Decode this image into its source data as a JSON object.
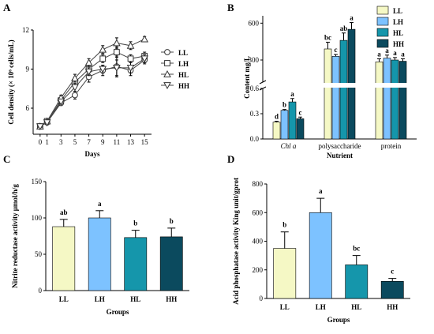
{
  "colors": {
    "LL": "#f5f8c5",
    "LH": "#7dc2ff",
    "HL": "#1596ab",
    "HH": "#0b4a5e",
    "line": "#444444"
  },
  "panels": [
    {
      "letter": "A",
      "chart_data": {
        "type": "line",
        "xlabel": "Days",
        "ylabel": "Cell density (× 10⁶ cells/mL)",
        "x": [
          0,
          1,
          3,
          5,
          7,
          9,
          11,
          13,
          15
        ],
        "xticks": [
          "0",
          "1",
          "3",
          "5",
          "7",
          "9",
          "11",
          "13",
          "15"
        ],
        "ylim": [
          4,
          12
        ],
        "yticks": [
          3,
          6,
          9,
          12
        ],
        "legend_position": "right",
        "series": [
          {
            "name": "LL",
            "marker": "circle",
            "values": [
              4.6,
              4.9,
              6.4,
              7.0,
              8.4,
              8.9,
              9.2,
              8.9,
              9.7
            ],
            "errors": [
              0.1,
              0.1,
              0.2,
              0.3,
              0.4,
              0.4,
              0.8,
              0.4,
              0.3
            ]
          },
          {
            "name": "LH",
            "marker": "square",
            "values": [
              4.6,
              5.0,
              6.6,
              8.0,
              9.0,
              9.8,
              10.3,
              9.8,
              10.0
            ],
            "errors": [
              0.1,
              0.1,
              0.2,
              0.3,
              0.3,
              0.3,
              0.4,
              0.3,
              0.3
            ]
          },
          {
            "name": "HL",
            "marker": "triangle-up",
            "values": [
              4.6,
              5.0,
              6.8,
              8.3,
              9.5,
              10.5,
              11.0,
              10.8,
              11.3
            ],
            "errors": [
              0.1,
              0.1,
              0.2,
              0.3,
              0.3,
              0.3,
              0.4,
              0.3,
              0.2
            ]
          },
          {
            "name": "HH",
            "marker": "triangle-down",
            "values": [
              4.6,
              4.9,
              6.5,
              7.6,
              8.8,
              9.0,
              9.1,
              9.1,
              9.8
            ],
            "errors": [
              0.1,
              0.1,
              0.2,
              0.3,
              0.3,
              0.3,
              0.6,
              0.4,
              0.3
            ]
          }
        ]
      }
    },
    {
      "letter": "B",
      "chart_data": {
        "type": "bar",
        "xlabel": "Nutrient",
        "ylabel": "Content mg/L",
        "categories": [
          "Chl a",
          "polysaccharide",
          "protein"
        ],
        "broken_axis": {
          "lower_range": [
            0,
            0.6
          ],
          "lower_ticks": [
            "0.0",
            "0.3",
            "0.6"
          ],
          "upper_range": [
            120,
            660
          ],
          "upper_ticks": [
            "300",
            "600"
          ]
        },
        "legend_position": "top-right",
        "series": [
          {
            "name": "LL",
            "values": [
              0.2,
              390,
              285
            ],
            "errors": [
              0.01,
              55,
              25
            ],
            "letters": [
              "d",
              "bc",
              "a"
            ]
          },
          {
            "name": "LH",
            "values": [
              0.34,
              330,
              315
            ],
            "errors": [
              0.01,
              15,
              25
            ],
            "letters": [
              "b",
              "c",
              "a"
            ]
          },
          {
            "name": "HL",
            "values": [
              0.44,
              460,
              300
            ],
            "errors": [
              0.04,
              60,
              20
            ],
            "letters": [
              "a",
              "ab",
              "a"
            ]
          },
          {
            "name": "HH",
            "values": [
              0.24,
              550,
              290
            ],
            "errors": [
              0.02,
              55,
              20
            ],
            "letters": [
              "c",
              "a",
              "a"
            ]
          }
        ]
      }
    },
    {
      "letter": "C",
      "chart_data": {
        "type": "bar",
        "xlabel": "Groups",
        "ylabel": "Nitrite reductase activity μmol/h/g",
        "categories": [
          "LL",
          "LH",
          "HL",
          "HH"
        ],
        "values": [
          88,
          100,
          73,
          74
        ],
        "errors": [
          10,
          10,
          10,
          12
        ],
        "letters": [
          "ab",
          "a",
          "b",
          "b"
        ],
        "ylim": [
          0,
          150
        ],
        "yticks": [
          0,
          50,
          100,
          150
        ]
      }
    },
    {
      "letter": "D",
      "chart_data": {
        "type": "bar",
        "xlabel": "Groups",
        "ylabel": "Acid phosphatase activity King unit/gprot",
        "categories": [
          "LL",
          "LH",
          "HL",
          "HH"
        ],
        "values": [
          350,
          600,
          235,
          120
        ],
        "errors": [
          115,
          100,
          65,
          20
        ],
        "letters": [
          "b",
          "a",
          "bc",
          "c"
        ],
        "ylim": [
          0,
          800
        ],
        "yticks": [
          0,
          200,
          400,
          600,
          800
        ]
      }
    }
  ]
}
